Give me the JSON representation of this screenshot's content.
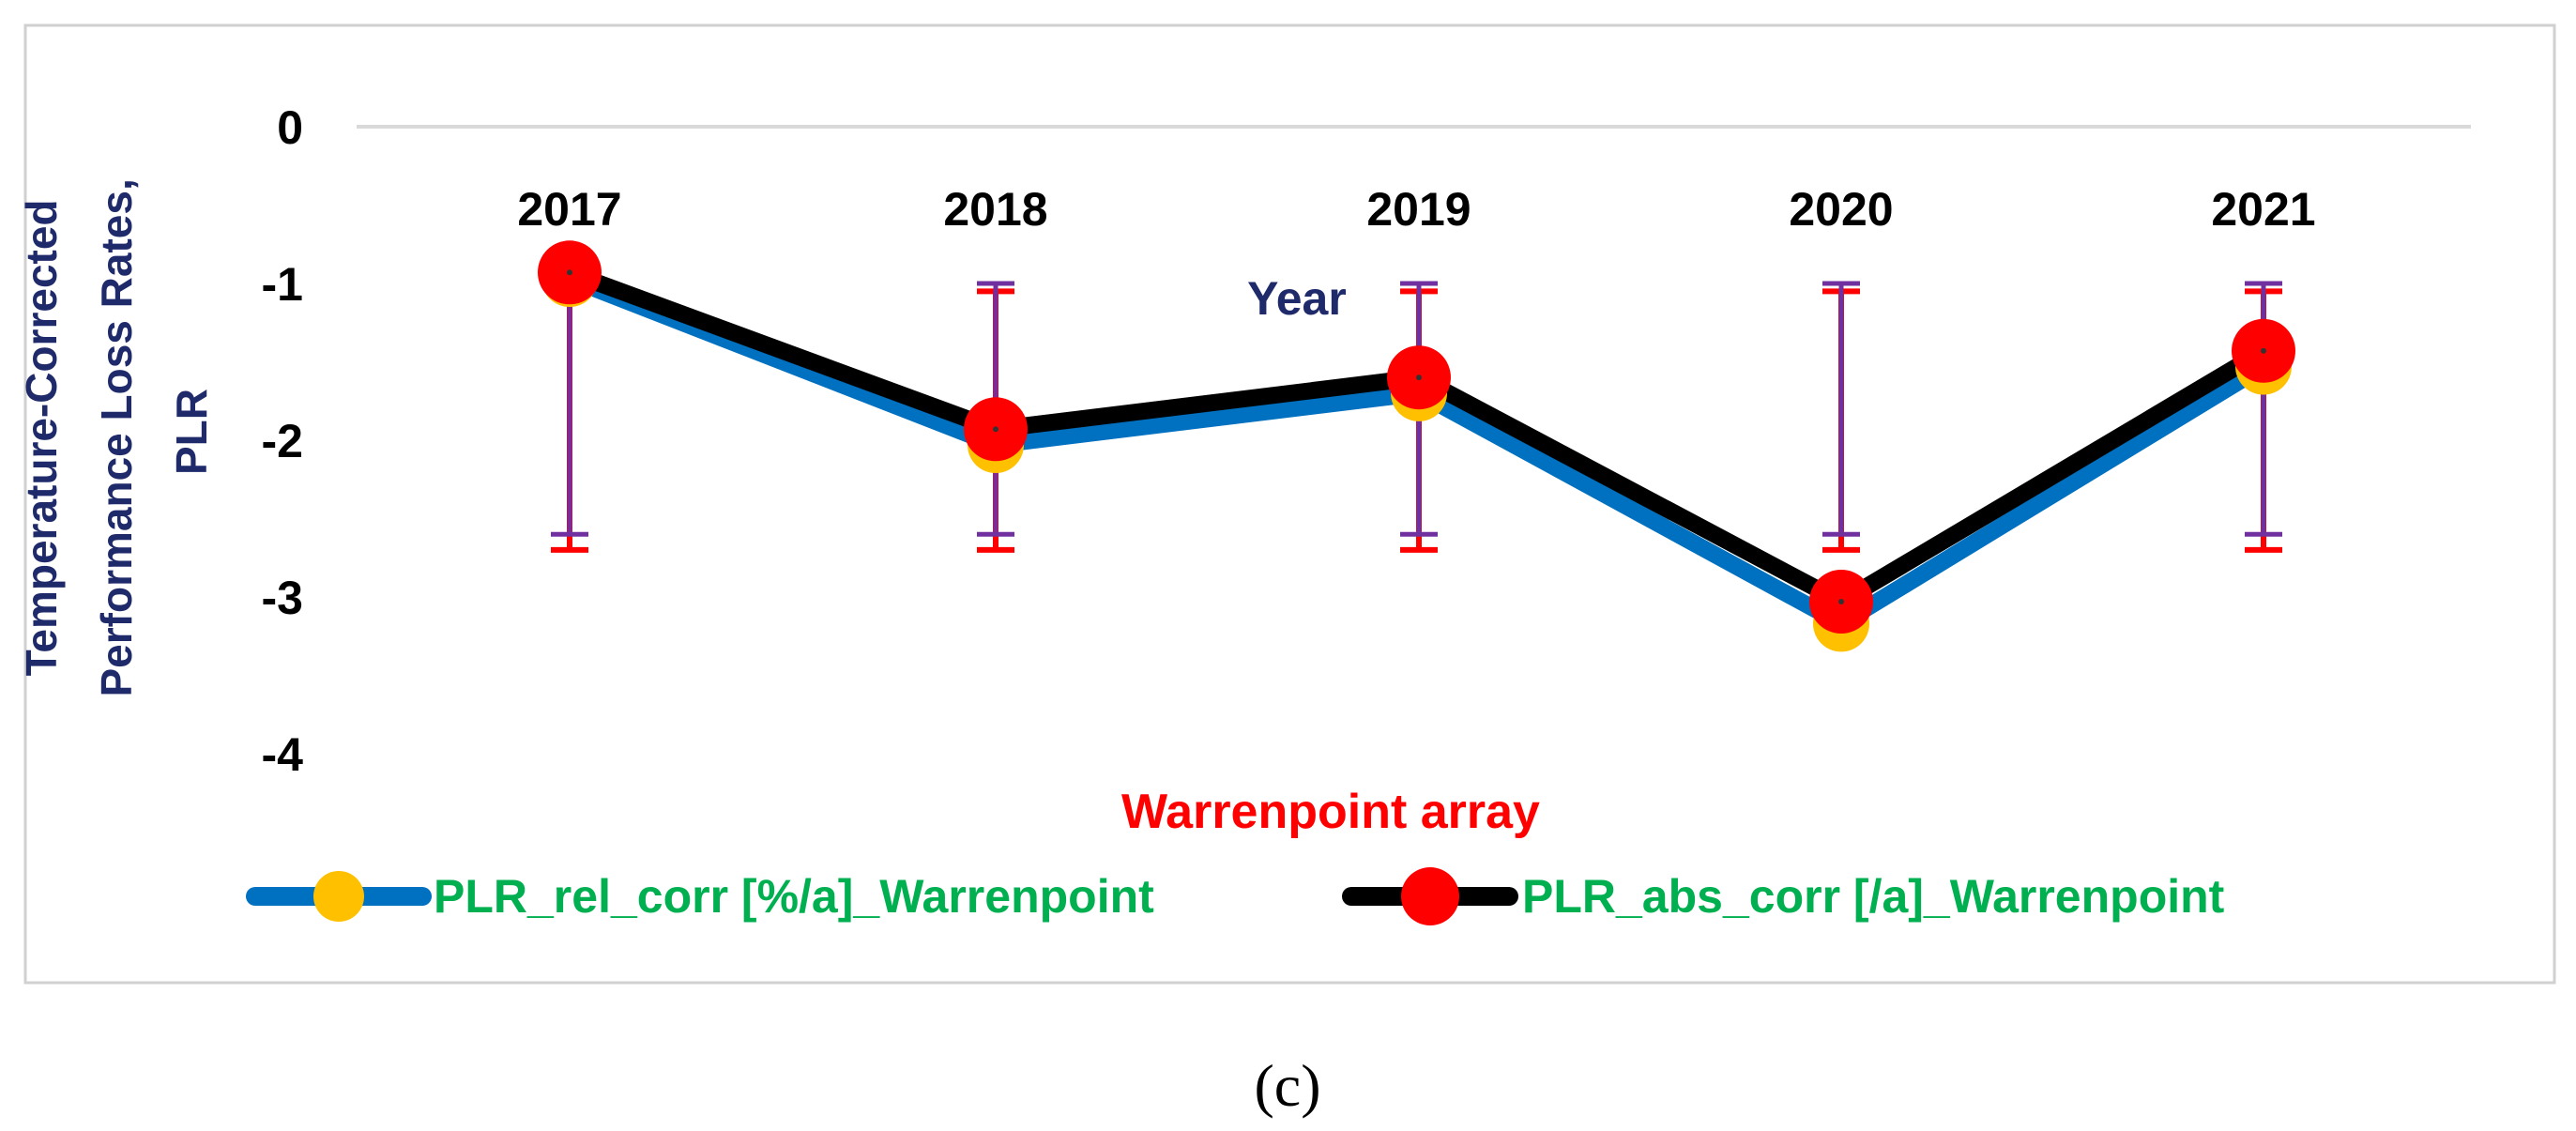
{
  "chart_data": {
    "type": "line",
    "categories": [
      "2017",
      "2018",
      "2019",
      "2020",
      "2021"
    ],
    "series": [
      {
        "name": "PLR_rel_corr [%/a]_Warrenpoint",
        "values": [
          -0.97,
          -2.03,
          -1.7,
          -3.17,
          -1.53
        ],
        "line_color": "#0070C0",
        "marker_color": "#FFC000"
      },
      {
        "name": "PLR_abs_corr [/a]_Warrenpoint",
        "values": [
          -0.93,
          -1.93,
          -1.6,
          -3.03,
          -1.43
        ],
        "line_color": "#000000",
        "marker_color": "#FF0000"
      }
    ],
    "error_bars": {
      "purple": {
        "color": "#7030A0",
        "top": [
          -1.0,
          -1.0,
          -1.0,
          -1.0,
          -1.0
        ],
        "bottom": [
          -2.6,
          -2.6,
          -2.6,
          -2.6,
          -2.6
        ]
      },
      "red": {
        "color": "#FF0000",
        "top": [
          -1.05,
          -1.05,
          -1.05,
          -1.05,
          -1.05
        ],
        "bottom": [
          -2.7,
          -2.7,
          -2.7,
          -2.7,
          -2.7
        ]
      }
    },
    "ylim": [
      -4,
      0
    ],
    "yticks": [
      0,
      -1,
      -2,
      -3,
      -4
    ],
    "ylabel_lines": [
      "Temperature-Corrected",
      "Performance Loss Rates,",
      "PLR"
    ],
    "xlabel": "Year",
    "title": "Warrenpoint array",
    "grid": "zero line only",
    "legend_position": "bottom",
    "label_color": "#1F2A6B",
    "title_color": "#FF0000",
    "legend_text_color": "#00B050"
  },
  "caption": "(c)"
}
